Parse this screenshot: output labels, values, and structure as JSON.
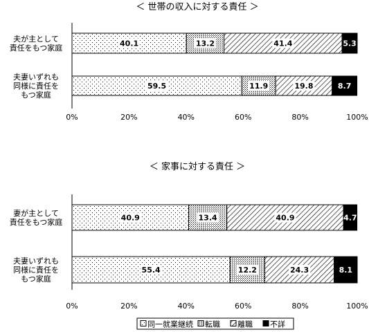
{
  "chart_data": [
    {
      "type": "bar",
      "orientation": "horizontal",
      "stacked": true,
      "title": "＜ 世帯の収入に対する責任 ＞",
      "categories": [
        "夫が主として\n責任をもつ家庭",
        "夫妻いずれも\n同様に責任を\nもつ家庭"
      ],
      "series": [
        {
          "name": "同一就業継続",
          "values": [
            40.1,
            59.5
          ]
        },
        {
          "name": "転職",
          "values": [
            13.2,
            11.9
          ]
        },
        {
          "name": "離職",
          "values": [
            41.4,
            19.8
          ]
        },
        {
          "name": "不詳",
          "values": [
            5.3,
            8.7
          ]
        }
      ],
      "xlim": [
        0,
        100
      ],
      "x_ticks": [
        "0%",
        "20%",
        "40%",
        "60%",
        "80%",
        "100%"
      ],
      "grid": false
    },
    {
      "type": "bar",
      "orientation": "horizontal",
      "stacked": true,
      "title": "＜ 家事に対する責任 ＞",
      "categories": [
        "妻が主として\n責任をもつ家庭",
        "夫妻いずれも\n同様に責任を\nもつ家庭"
      ],
      "series": [
        {
          "name": "同一就業継続",
          "values": [
            40.9,
            55.4
          ]
        },
        {
          "name": "転職",
          "values": [
            13.4,
            12.2
          ]
        },
        {
          "name": "離職",
          "values": [
            40.9,
            24.3
          ]
        },
        {
          "name": "不詳",
          "values": [
            4.7,
            8.1
          ]
        }
      ],
      "xlim": [
        0,
        100
      ],
      "x_ticks": [
        "0%",
        "20%",
        "40%",
        "60%",
        "80%",
        "100%"
      ],
      "grid": false
    }
  ],
  "legend": {
    "placement": "bottom",
    "items": [
      {
        "label": "同一就業継続",
        "pattern": "dots-sparse"
      },
      {
        "label": "転職",
        "pattern": "dots-dense"
      },
      {
        "label": "離職",
        "pattern": "diagonal-hatch"
      },
      {
        "label": "不詳",
        "pattern": "solid-black"
      }
    ]
  }
}
